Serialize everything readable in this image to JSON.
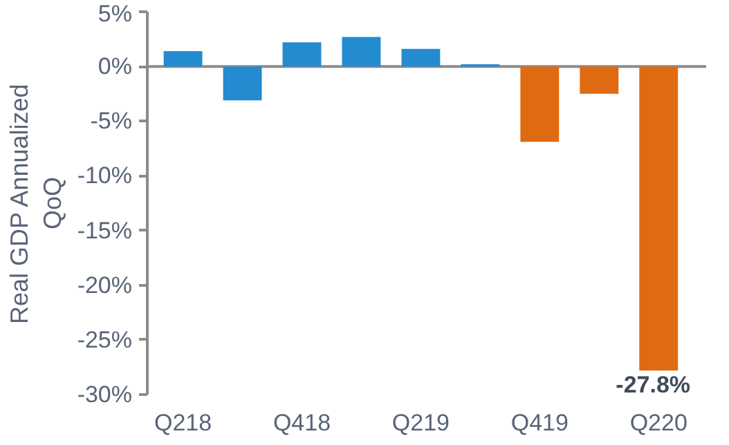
{
  "chart_data": {
    "type": "bar",
    "ylabel": "Real GDP Annualized QoQ",
    "categories": [
      "Q218",
      null,
      "Q418",
      null,
      "Q219",
      null,
      "Q419",
      null,
      "Q220"
    ],
    "values": [
      1.4,
      -3.1,
      2.2,
      2.7,
      1.6,
      0.2,
      -6.9,
      -2.5,
      -27.8
    ],
    "colors": [
      "#238bcf",
      "#238bcf",
      "#238bcf",
      "#238bcf",
      "#238bcf",
      "#238bcf",
      "#e06a12",
      "#e06a12",
      "#e06a12"
    ],
    "value_labels": [
      null,
      null,
      null,
      null,
      null,
      null,
      null,
      null,
      "-27.8%"
    ],
    "ylim": [
      -30,
      5
    ],
    "yticks": [
      {
        "value": -30,
        "label": "-30%"
      },
      {
        "value": -25,
        "label": "-25%"
      },
      {
        "value": -20,
        "label": "-20%"
      },
      {
        "value": -15,
        "label": "-15%"
      },
      {
        "value": -10,
        "label": "-10%"
      },
      {
        "value": -5,
        "label": "-5%"
      },
      {
        "value": 0,
        "label": "0%"
      },
      {
        "value": 5,
        "label": "5%"
      }
    ],
    "ref_lines": [
      {
        "axis": "y",
        "value": 0,
        "color": "#8c8c8c"
      }
    ]
  }
}
